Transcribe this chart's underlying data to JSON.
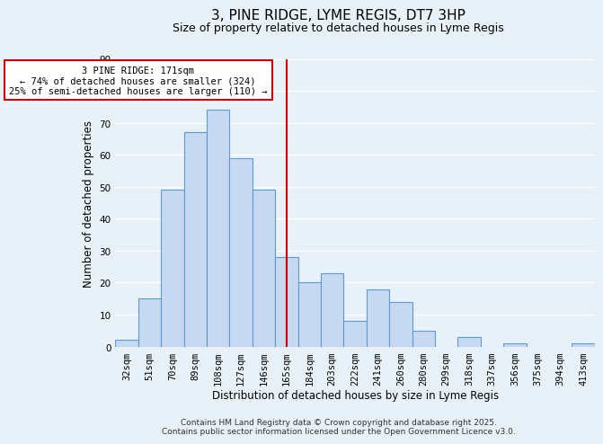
{
  "title": "3, PINE RIDGE, LYME REGIS, DT7 3HP",
  "subtitle": "Size of property relative to detached houses in Lyme Regis",
  "xlabel": "Distribution of detached houses by size in Lyme Regis",
  "ylabel": "Number of detached properties",
  "categories": [
    "32sqm",
    "51sqm",
    "70sqm",
    "89sqm",
    "108sqm",
    "127sqm",
    "146sqm",
    "165sqm",
    "184sqm",
    "203sqm",
    "222sqm",
    "241sqm",
    "260sqm",
    "280sqm",
    "299sqm",
    "318sqm",
    "337sqm",
    "356sqm",
    "375sqm",
    "394sqm",
    "413sqm"
  ],
  "values": [
    2,
    15,
    49,
    67,
    74,
    59,
    49,
    28,
    20,
    23,
    8,
    18,
    14,
    5,
    0,
    3,
    0,
    1,
    0,
    0,
    1
  ],
  "bar_color": "#c6d9f1",
  "bar_edge_color": "#5b9bd5",
  "vline_x_index": 7,
  "vline_color": "#cc0000",
  "ylim": [
    0,
    90
  ],
  "yticks": [
    0,
    10,
    20,
    30,
    40,
    50,
    60,
    70,
    80,
    90
  ],
  "annotation_title": "3 PINE RIDGE: 171sqm",
  "annotation_line1": "← 74% of detached houses are smaller (324)",
  "annotation_line2": "25% of semi-detached houses are larger (110) →",
  "annotation_box_color": "#ffffff",
  "annotation_box_edge": "#cc0000",
  "footer1": "Contains HM Land Registry data © Crown copyright and database right 2025.",
  "footer2": "Contains public sector information licensed under the Open Government Licence v3.0.",
  "background_color": "#e8f0f8",
  "grid_color": "#ffffff",
  "title_fontsize": 11,
  "subtitle_fontsize": 9,
  "axis_label_fontsize": 8.5,
  "tick_fontsize": 7.5,
  "annotation_fontsize": 7.5,
  "footer_fontsize": 6.5
}
